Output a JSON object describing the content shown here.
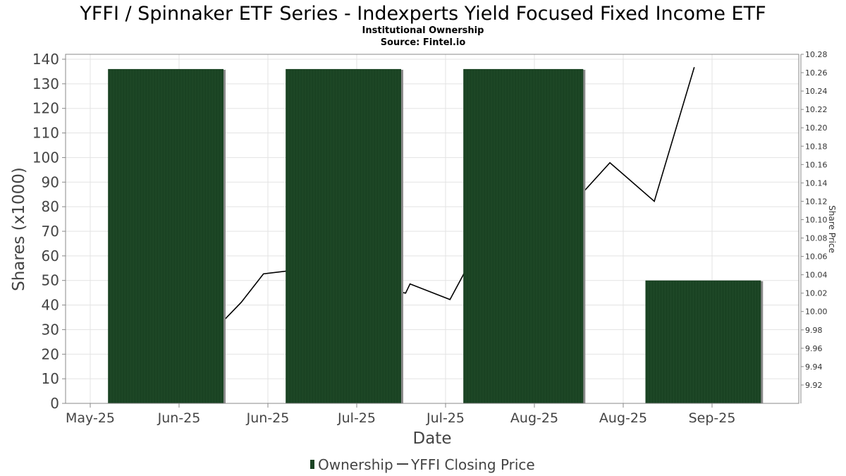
{
  "title": "YFFI / Spinnaker ETF Series - Indexperts Yield Focused Fixed Income ETF",
  "subtitle": "Institutional Ownership",
  "source": "Source: Fintel.io",
  "colors": {
    "bar": "#1a4323",
    "bar_shadow": "#8a8a8a",
    "line": "#000000",
    "grid": "#e3e3e3"
  },
  "chart_data": {
    "type": "bar",
    "title": "YFFI / Spinnaker ETF Series - Indexperts Yield Focused Fixed Income ETF",
    "xlabel": "Date",
    "ylabel": "Shares (x1000)",
    "y2label": "Share Price",
    "ylim": [
      0,
      142
    ],
    "y2lim": [
      9.9,
      10.28
    ],
    "x_tick_labels": [
      "May-25",
      "Jun-25",
      "Jun-25",
      "Jul-25",
      "Jul-25",
      "Aug-25",
      "Aug-25",
      "Sep-25"
    ],
    "y_ticks": [
      0,
      10,
      20,
      30,
      40,
      50,
      60,
      70,
      80,
      90,
      100,
      110,
      120,
      130,
      140
    ],
    "y2_ticks": [
      "9.92",
      "9.94",
      "9.96",
      "9.98",
      "10.00",
      "10.02",
      "10.04",
      "10.06",
      "10.08",
      "10.10",
      "10.12",
      "10.14",
      "10.16",
      "10.18",
      "10.20",
      "10.22",
      "10.24",
      "10.26",
      "10.28"
    ],
    "grid": true,
    "legend_position": "bottom",
    "legend": [
      "Ownership",
      "YFFI Closing Price"
    ],
    "bars": {
      "name": "Ownership",
      "periods": [
        {
          "start": 0.2,
          "end": 1.5,
          "value": 136
        },
        {
          "start": 2.2,
          "end": 3.5,
          "value": 136
        },
        {
          "start": 4.2,
          "end": 5.55,
          "value": 136
        },
        {
          "start": 6.25,
          "end": 7.55,
          "value": 50
        }
      ]
    },
    "line": {
      "name": "YFFI Closing Price",
      "points": [
        [
          1.45,
          9.985
        ],
        [
          1.7,
          10.01
        ],
        [
          1.95,
          10.041
        ],
        [
          2.3,
          10.045
        ],
        [
          3.55,
          10.02
        ],
        [
          3.6,
          10.03
        ],
        [
          4.05,
          10.013
        ],
        [
          4.2,
          10.04
        ],
        [
          4.4,
          10.08
        ],
        [
          5.55,
          10.13
        ],
        [
          5.85,
          10.162
        ],
        [
          6.35,
          10.12
        ],
        [
          6.8,
          10.266
        ]
      ]
    }
  }
}
